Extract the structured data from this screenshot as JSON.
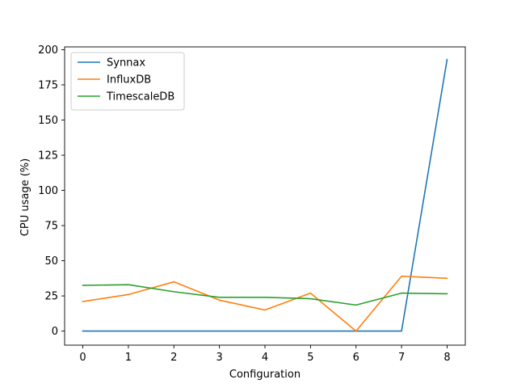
{
  "chart_data": {
    "type": "line",
    "xlabel": "Configuration",
    "ylabel": "CPU usage (%)",
    "x": [
      0,
      1,
      2,
      3,
      4,
      5,
      6,
      7,
      8
    ],
    "xlim": [
      -0.4,
      8.4
    ],
    "ylim": [
      -10,
      202
    ],
    "xticks": [
      0,
      1,
      2,
      3,
      4,
      5,
      6,
      7,
      8
    ],
    "yticks": [
      0,
      25,
      50,
      75,
      100,
      125,
      150,
      175,
      200
    ],
    "grid": false,
    "legend_position": "upper-left",
    "series": [
      {
        "name": "Synnax",
        "color": "#1f77b4",
        "values": [
          0,
          0,
          0,
          0,
          0,
          0,
          0,
          0,
          193
        ]
      },
      {
        "name": "InfluxDB",
        "color": "#ff7f0e",
        "values": [
          21,
          26,
          35,
          22,
          15,
          27,
          0,
          39,
          37.5
        ]
      },
      {
        "name": "TimescaleDB",
        "color": "#2ca02c",
        "values": [
          32.5,
          33,
          28,
          24,
          24,
          23,
          18.5,
          27,
          26.5
        ]
      }
    ]
  }
}
